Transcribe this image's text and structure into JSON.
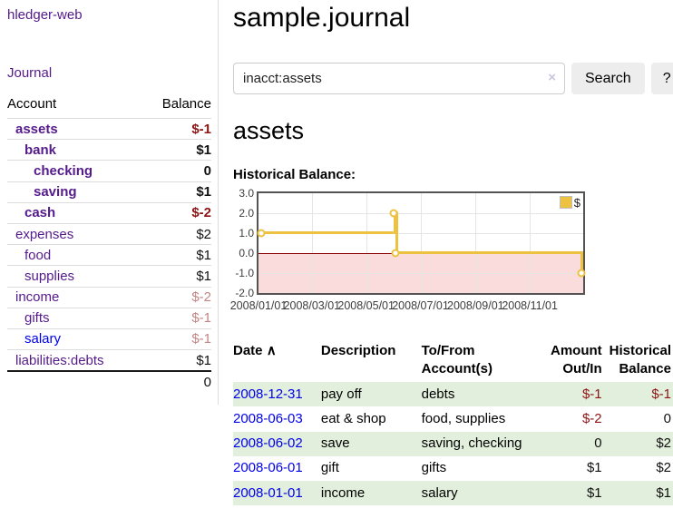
{
  "sidebar": {
    "brand": "hledger-web",
    "journal_label": "Journal",
    "accounts": {
      "col_account": "Account",
      "col_balance": "Balance",
      "rows": [
        {
          "name": "assets",
          "depth": 1,
          "emph": true,
          "blue": false,
          "balance": "$-1",
          "dim": false
        },
        {
          "name": "bank",
          "depth": 2,
          "emph": true,
          "blue": false,
          "balance": "$1",
          "dim": false
        },
        {
          "name": "checking",
          "depth": 3,
          "emph": true,
          "blue": false,
          "balance": "0",
          "dim": false
        },
        {
          "name": "saving",
          "depth": 3,
          "emph": true,
          "blue": false,
          "balance": "$1",
          "dim": false
        },
        {
          "name": "cash",
          "depth": 2,
          "emph": true,
          "blue": false,
          "balance": "$-2",
          "dim": false
        },
        {
          "name": "expenses",
          "depth": 1,
          "emph": false,
          "blue": false,
          "balance": "$2",
          "dim": false
        },
        {
          "name": "food",
          "depth": 2,
          "emph": false,
          "blue": false,
          "balance": "$1",
          "dim": false
        },
        {
          "name": "supplies",
          "depth": 2,
          "emph": false,
          "blue": false,
          "balance": "$1",
          "dim": false
        },
        {
          "name": "income",
          "depth": 1,
          "emph": false,
          "blue": false,
          "balance": "$-2",
          "dim": true
        },
        {
          "name": "gifts",
          "depth": 2,
          "emph": false,
          "blue": false,
          "balance": "$-1",
          "dim": true
        },
        {
          "name": "salary",
          "depth": 2,
          "emph": false,
          "blue": true,
          "balance": "$-1",
          "dim": true
        },
        {
          "name": "liabilities:debts",
          "depth": 1,
          "emph": false,
          "blue": false,
          "balance": "$1",
          "dim": false
        }
      ],
      "total": "0"
    }
  },
  "header": {
    "title": "sample.journal"
  },
  "search": {
    "value": "inacct:assets",
    "clear_icon": "×",
    "button_label": "Search",
    "help_label": "?"
  },
  "account_page": {
    "heading": "assets"
  },
  "chart_data": {
    "type": "line",
    "title": "Historical Balance:",
    "step": true,
    "x_range": [
      "2008-01-01",
      "2008-12-31"
    ],
    "ylim": [
      -2,
      3
    ],
    "yticks": [
      3.0,
      2.0,
      1.0,
      0.0,
      -1.0,
      -2.0
    ],
    "ytick_labels": [
      "3.0",
      "2.0",
      "1.0",
      "0.0",
      "-1.0",
      "-2.0"
    ],
    "xticks": [
      "2008/01/01",
      "2008/03/01",
      "2008/05/01",
      "2008/07/01",
      "2008/09/01",
      "2008/11/01"
    ],
    "series": [
      {
        "name": "$",
        "color": "#edc240",
        "points": [
          {
            "x": "2008-01-01",
            "y": 1
          },
          {
            "x": "2008-06-01",
            "y": 2
          },
          {
            "x": "2008-06-03",
            "y": 0
          },
          {
            "x": "2008-12-31",
            "y": -1
          }
        ]
      }
    ],
    "legend_position": "top-right",
    "grid": true,
    "negative_region_color": "#fbdcdc",
    "zero_line_color": "#8b0000"
  },
  "register": {
    "headers": {
      "date": "Date",
      "sort_indicator": "∧",
      "description": "Description",
      "accounts": "To/From Account(s)",
      "amount": "Amount Out/In",
      "balance": "Historical Balance"
    },
    "rows": [
      {
        "date": "2008-12-31",
        "description": "pay off",
        "accounts": "debts",
        "amount": "$-1",
        "balance": "$-1"
      },
      {
        "date": "2008-06-03",
        "description": "eat & shop",
        "accounts": "food, supplies",
        "amount": "$-2",
        "balance": "0"
      },
      {
        "date": "2008-06-02",
        "description": "save",
        "accounts": "saving, checking",
        "amount": "0",
        "balance": "$2"
      },
      {
        "date": "2008-06-01",
        "description": "gift",
        "accounts": "gifts",
        "amount": "$1",
        "balance": "$2"
      },
      {
        "date": "2008-01-01",
        "description": "income",
        "accounts": "salary",
        "amount": "$1",
        "balance": "$1"
      }
    ]
  },
  "colors": {
    "link_visited_purple": "#551a8b",
    "link_blue": "#0000ee",
    "negative_red": "#8c1414",
    "negative_faded": "#c28585",
    "stripe_green": "#e3efdd",
    "chart_line_gold": "#edc240",
    "chart_negative_fill": "#fbdcdc",
    "chart_zero_line": "#8b0000",
    "button_gray": "#ededed"
  }
}
